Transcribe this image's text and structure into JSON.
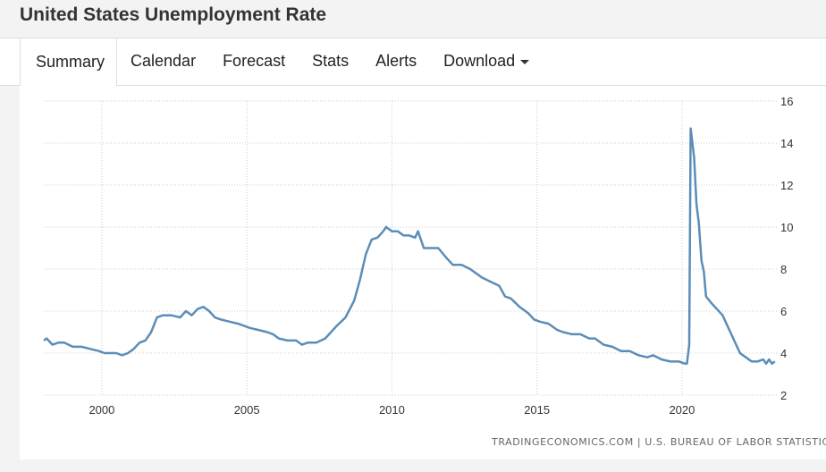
{
  "header": {
    "title": "United States Unemployment Rate"
  },
  "tabs": [
    {
      "label": "Summary",
      "active": true
    },
    {
      "label": "Calendar"
    },
    {
      "label": "Forecast"
    },
    {
      "label": "Stats"
    },
    {
      "label": "Alerts"
    },
    {
      "label": "Download",
      "dropdown": true
    }
  ],
  "source": {
    "text": "TRADINGECONOMICS.COM  |  U.S. BUREAU OF LABOR STATISTICS"
  },
  "colors": {
    "line": "#5b8db8",
    "grid": "#cccccc",
    "axis_text": "#333333",
    "background": "#ffffff"
  },
  "chart_data": {
    "type": "line",
    "title": "",
    "xlabel": "",
    "ylabel": "",
    "x_ticks": [
      2000,
      2005,
      2010,
      2015,
      2020
    ],
    "y_ticks": [
      2,
      4,
      6,
      8,
      10,
      12,
      14,
      16
    ],
    "xlim": [
      1998.0,
      2023.3
    ],
    "ylim": [
      2,
      16
    ],
    "y_axis_side": "right",
    "grid": "dotted",
    "legend": "none",
    "series": [
      {
        "x": [
          1998.0,
          1998.1,
          1998.3,
          1998.5,
          1998.7,
          1999.0,
          1999.3,
          1999.6,
          1999.9,
          2000.1,
          2000.3,
          2000.5,
          2000.7,
          2000.9,
          2001.1,
          2001.3,
          2001.5,
          2001.7,
          2001.9,
          2002.1,
          2002.4,
          2002.7,
          2002.9,
          2003.1,
          2003.3,
          2003.5,
          2003.7,
          2003.9,
          2004.1,
          2004.4,
          2004.7,
          2004.9,
          2005.1,
          2005.4,
          2005.7,
          2005.9,
          2006.1,
          2006.4,
          2006.7,
          2006.9,
          2007.1,
          2007.4,
          2007.7,
          2007.9,
          2008.1,
          2008.4,
          2008.7,
          2008.9,
          2009.1,
          2009.3,
          2009.5,
          2009.7,
          2009.8,
          2010.0,
          2010.2,
          2010.4,
          2010.6,
          2010.8,
          2010.9,
          2011.1,
          2011.3,
          2011.6,
          2011.9,
          2012.1,
          2012.4,
          2012.7,
          2012.9,
          2013.1,
          2013.4,
          2013.7,
          2013.9,
          2014.1,
          2014.4,
          2014.7,
          2014.9,
          2015.1,
          2015.4,
          2015.7,
          2015.9,
          2016.2,
          2016.5,
          2016.8,
          2017.0,
          2017.3,
          2017.6,
          2017.9,
          2018.2,
          2018.5,
          2018.8,
          2019.0,
          2019.3,
          2019.6,
          2019.9,
          2020.1,
          2020.17,
          2020.25,
          2020.3,
          2020.42,
          2020.5,
          2020.58,
          2020.67,
          2020.75,
          2020.83,
          2021.0,
          2021.2,
          2021.4,
          2021.6,
          2021.8,
          2022.0,
          2022.2,
          2022.4,
          2022.6,
          2022.8,
          2022.9,
          2023.0,
          2023.1,
          2023.2
        ],
        "values": [
          4.6,
          4.7,
          4.4,
          4.5,
          4.5,
          4.3,
          4.3,
          4.2,
          4.1,
          4.0,
          4.0,
          4.0,
          3.9,
          4.0,
          4.2,
          4.5,
          4.6,
          5.0,
          5.7,
          5.8,
          5.8,
          5.7,
          6.0,
          5.8,
          6.1,
          6.2,
          6.0,
          5.7,
          5.6,
          5.5,
          5.4,
          5.3,
          5.2,
          5.1,
          5.0,
          4.9,
          4.7,
          4.6,
          4.6,
          4.4,
          4.5,
          4.5,
          4.7,
          5.0,
          5.3,
          5.7,
          6.5,
          7.5,
          8.7,
          9.4,
          9.5,
          9.8,
          10.0,
          9.8,
          9.8,
          9.6,
          9.6,
          9.5,
          9.8,
          9.0,
          9.0,
          9.0,
          8.5,
          8.2,
          8.2,
          8.0,
          7.8,
          7.6,
          7.4,
          7.2,
          6.7,
          6.6,
          6.2,
          5.9,
          5.6,
          5.5,
          5.4,
          5.1,
          5.0,
          4.9,
          4.9,
          4.7,
          4.7,
          4.4,
          4.3,
          4.1,
          4.1,
          3.9,
          3.8,
          3.9,
          3.7,
          3.6,
          3.6,
          3.5,
          3.5,
          4.4,
          14.7,
          13.3,
          11.1,
          10.2,
          8.4,
          7.9,
          6.7,
          6.4,
          6.1,
          5.8,
          5.2,
          4.6,
          4.0,
          3.8,
          3.6,
          3.6,
          3.7,
          3.5,
          3.7,
          3.5,
          3.6
        ]
      }
    ]
  }
}
